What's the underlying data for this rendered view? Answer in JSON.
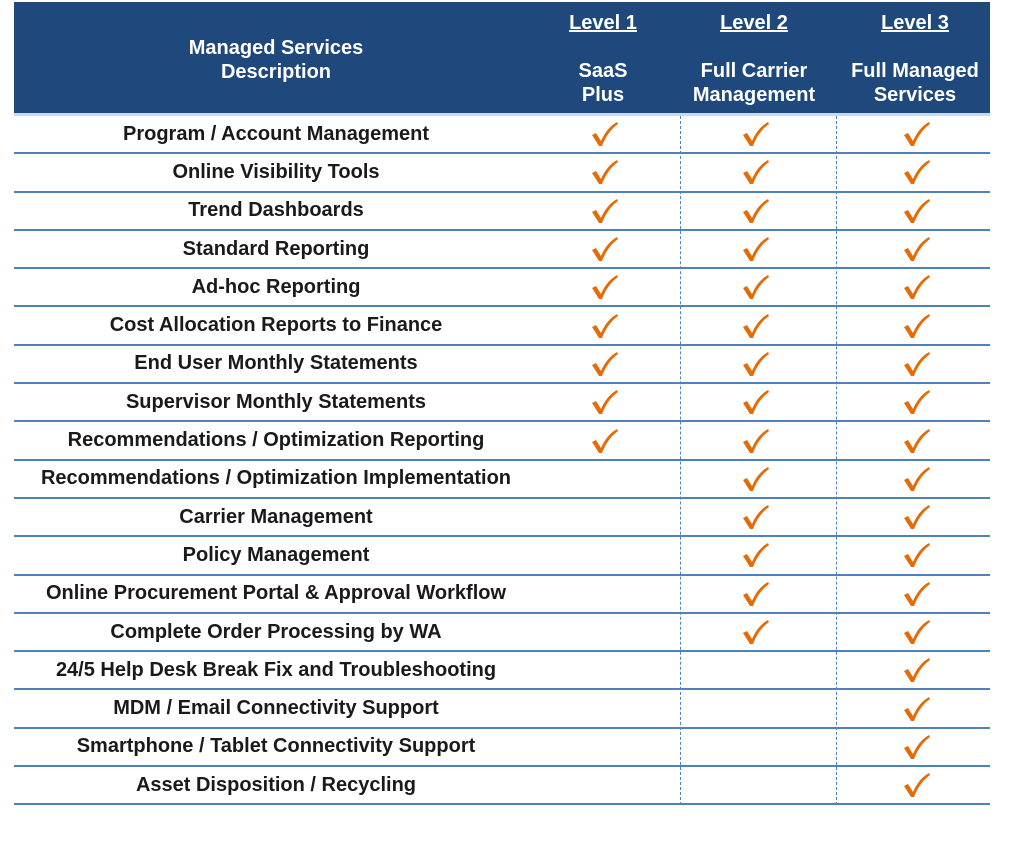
{
  "header": {
    "description_label": "Managed Services\nDescription",
    "levels": [
      {
        "level": "Level 1",
        "name": "SaaS\nPlus"
      },
      {
        "level": "Level 2",
        "name": "Full Carrier\nManagement"
      },
      {
        "level": "Level 3",
        "name": "Full Managed\nServices"
      }
    ]
  },
  "colors": {
    "header_bg": "#1f497d",
    "rule": "#4f81bd",
    "check": "#e36c09"
  },
  "icons": {
    "check": "checkmark-icon"
  },
  "rows": [
    {
      "label": "Program / Account  Management",
      "checks": [
        true,
        true,
        true
      ]
    },
    {
      "label": "Online Visibility Tools",
      "checks": [
        true,
        true,
        true
      ]
    },
    {
      "label": "Trend Dashboards",
      "checks": [
        true,
        true,
        true
      ]
    },
    {
      "label": "Standard Reporting",
      "checks": [
        true,
        true,
        true
      ]
    },
    {
      "label": "Ad-hoc Reporting",
      "checks": [
        true,
        true,
        true
      ]
    },
    {
      "label": "Cost Allocation  Reports to Finance",
      "checks": [
        true,
        true,
        true
      ]
    },
    {
      "label": "End User Monthly Statements",
      "checks": [
        true,
        true,
        true
      ]
    },
    {
      "label": "Supervisor Monthly Statements",
      "checks": [
        true,
        true,
        true
      ]
    },
    {
      "label": "Recommendations  / Optimization Reporting",
      "checks": [
        true,
        true,
        true
      ]
    },
    {
      "label": "Recommendations  / Optimization Implementation",
      "checks": [
        false,
        true,
        true
      ]
    },
    {
      "label": "Carrier Management",
      "checks": [
        false,
        true,
        true
      ]
    },
    {
      "label": "Policy Management",
      "checks": [
        false,
        true,
        true
      ]
    },
    {
      "label": "Online Procurement Portal & Approval Workflow",
      "checks": [
        false,
        true,
        true
      ]
    },
    {
      "label": "Complete Order Processing by WA",
      "checks": [
        false,
        true,
        true
      ]
    },
    {
      "label": "24/5 Help Desk Break Fix and Troubleshooting",
      "checks": [
        false,
        false,
        true
      ]
    },
    {
      "label": "MDM / Email Connectivity Support",
      "checks": [
        false,
        false,
        true
      ]
    },
    {
      "label": "Smartphone / Tablet Connectivity Support",
      "checks": [
        false,
        false,
        true
      ]
    },
    {
      "label": "Asset Disposition  / Recycling",
      "checks": [
        false,
        false,
        true
      ]
    }
  ]
}
